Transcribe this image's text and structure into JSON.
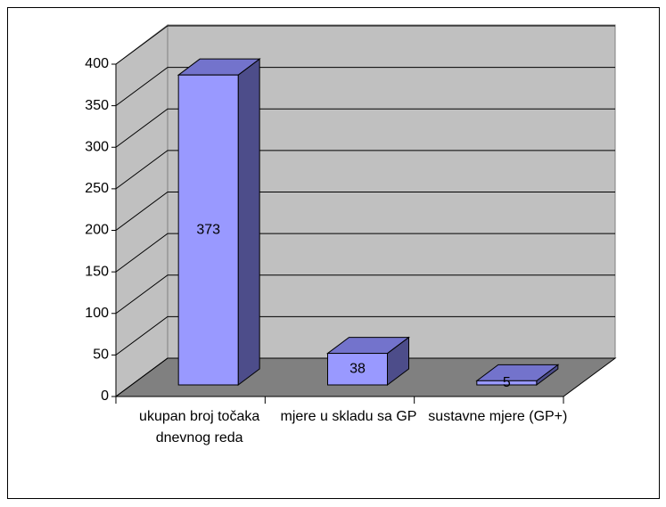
{
  "chart_data": {
    "type": "bar3d",
    "categories": [
      "ukupan broj točaka dnevnog reda",
      "mjere u skladu sa GP",
      "sustavne mjere (GP+)"
    ],
    "values": [
      373,
      38,
      5
    ],
    "color": "#9999ff",
    "ylim": [
      0,
      400
    ],
    "yticks": [
      0,
      50,
      100,
      150,
      200,
      250,
      300,
      350,
      400
    ],
    "grid": true
  }
}
